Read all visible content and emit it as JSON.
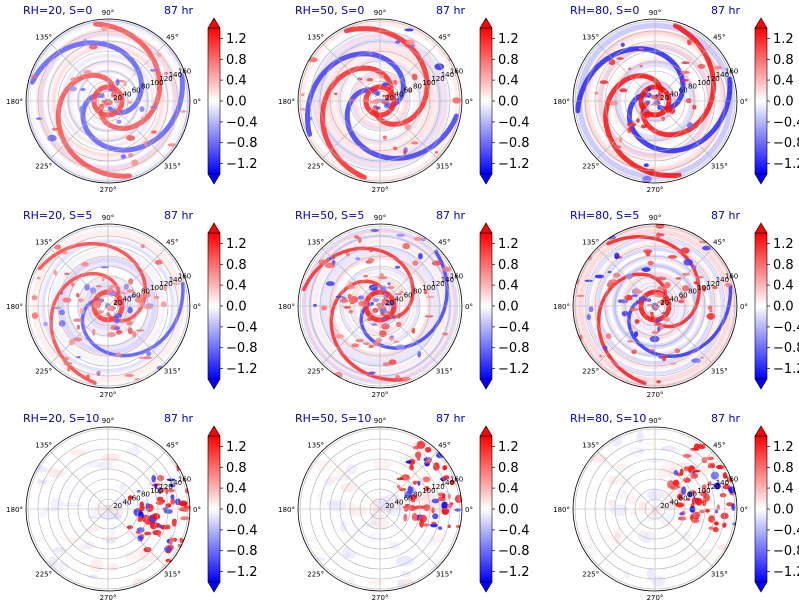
{
  "chart_data": {
    "type": "polar-heatmap",
    "shared": {
      "angular_ticks": [
        "0°",
        "45°",
        "90°",
        "135°",
        "180°",
        "225°",
        "270°",
        "315°"
      ],
      "radial_ticks": [
        20,
        40,
        60,
        80,
        100,
        120,
        140,
        160
      ],
      "colorbar_ticks": [
        "−1.2",
        "−0.8",
        "−0.4",
        "0.0",
        "0.4",
        "0.8",
        "1.2"
      ],
      "colorbar_range": [
        -1.4,
        1.4
      ],
      "colormap": "bwr",
      "colors": {
        "low": "#0000ff",
        "mid": "#ffffff",
        "high": "#ff0000"
      }
    },
    "panels": [
      {
        "title": "RH=20, S=0",
        "time": "87 hr",
        "rh": 20,
        "shear": 0,
        "pattern": "spiral",
        "intensity": 0.7
      },
      {
        "title": "RH=50, S=0",
        "time": "87 hr",
        "rh": 50,
        "shear": 0,
        "pattern": "spiral",
        "intensity": 0.85
      },
      {
        "title": "RH=80, S=0",
        "time": "87 hr",
        "rh": 80,
        "shear": 0,
        "pattern": "spiral",
        "intensity": 0.95
      },
      {
        "title": "RH=20, S=5",
        "time": "87 hr",
        "rh": 20,
        "shear": 5,
        "pattern": "spiral-patchy",
        "intensity": 0.75
      },
      {
        "title": "RH=50, S=5",
        "time": "87 hr",
        "rh": 50,
        "shear": 5,
        "pattern": "spiral-patchy",
        "intensity": 0.85
      },
      {
        "title": "RH=80, S=5",
        "time": "87 hr",
        "rh": 80,
        "shear": 5,
        "pattern": "spiral-patchy",
        "intensity": 0.9
      },
      {
        "title": "RH=20, S=10",
        "time": "87 hr",
        "rh": 20,
        "shear": 10,
        "pattern": "sheared",
        "intensity": 0.55
      },
      {
        "title": "RH=50, S=10",
        "time": "87 hr",
        "rh": 50,
        "shear": 10,
        "pattern": "sheared",
        "intensity": 0.5
      },
      {
        "title": "RH=80, S=10",
        "time": "87 hr",
        "rh": 80,
        "shear": 10,
        "pattern": "sheared",
        "intensity": 0.4
      }
    ]
  }
}
